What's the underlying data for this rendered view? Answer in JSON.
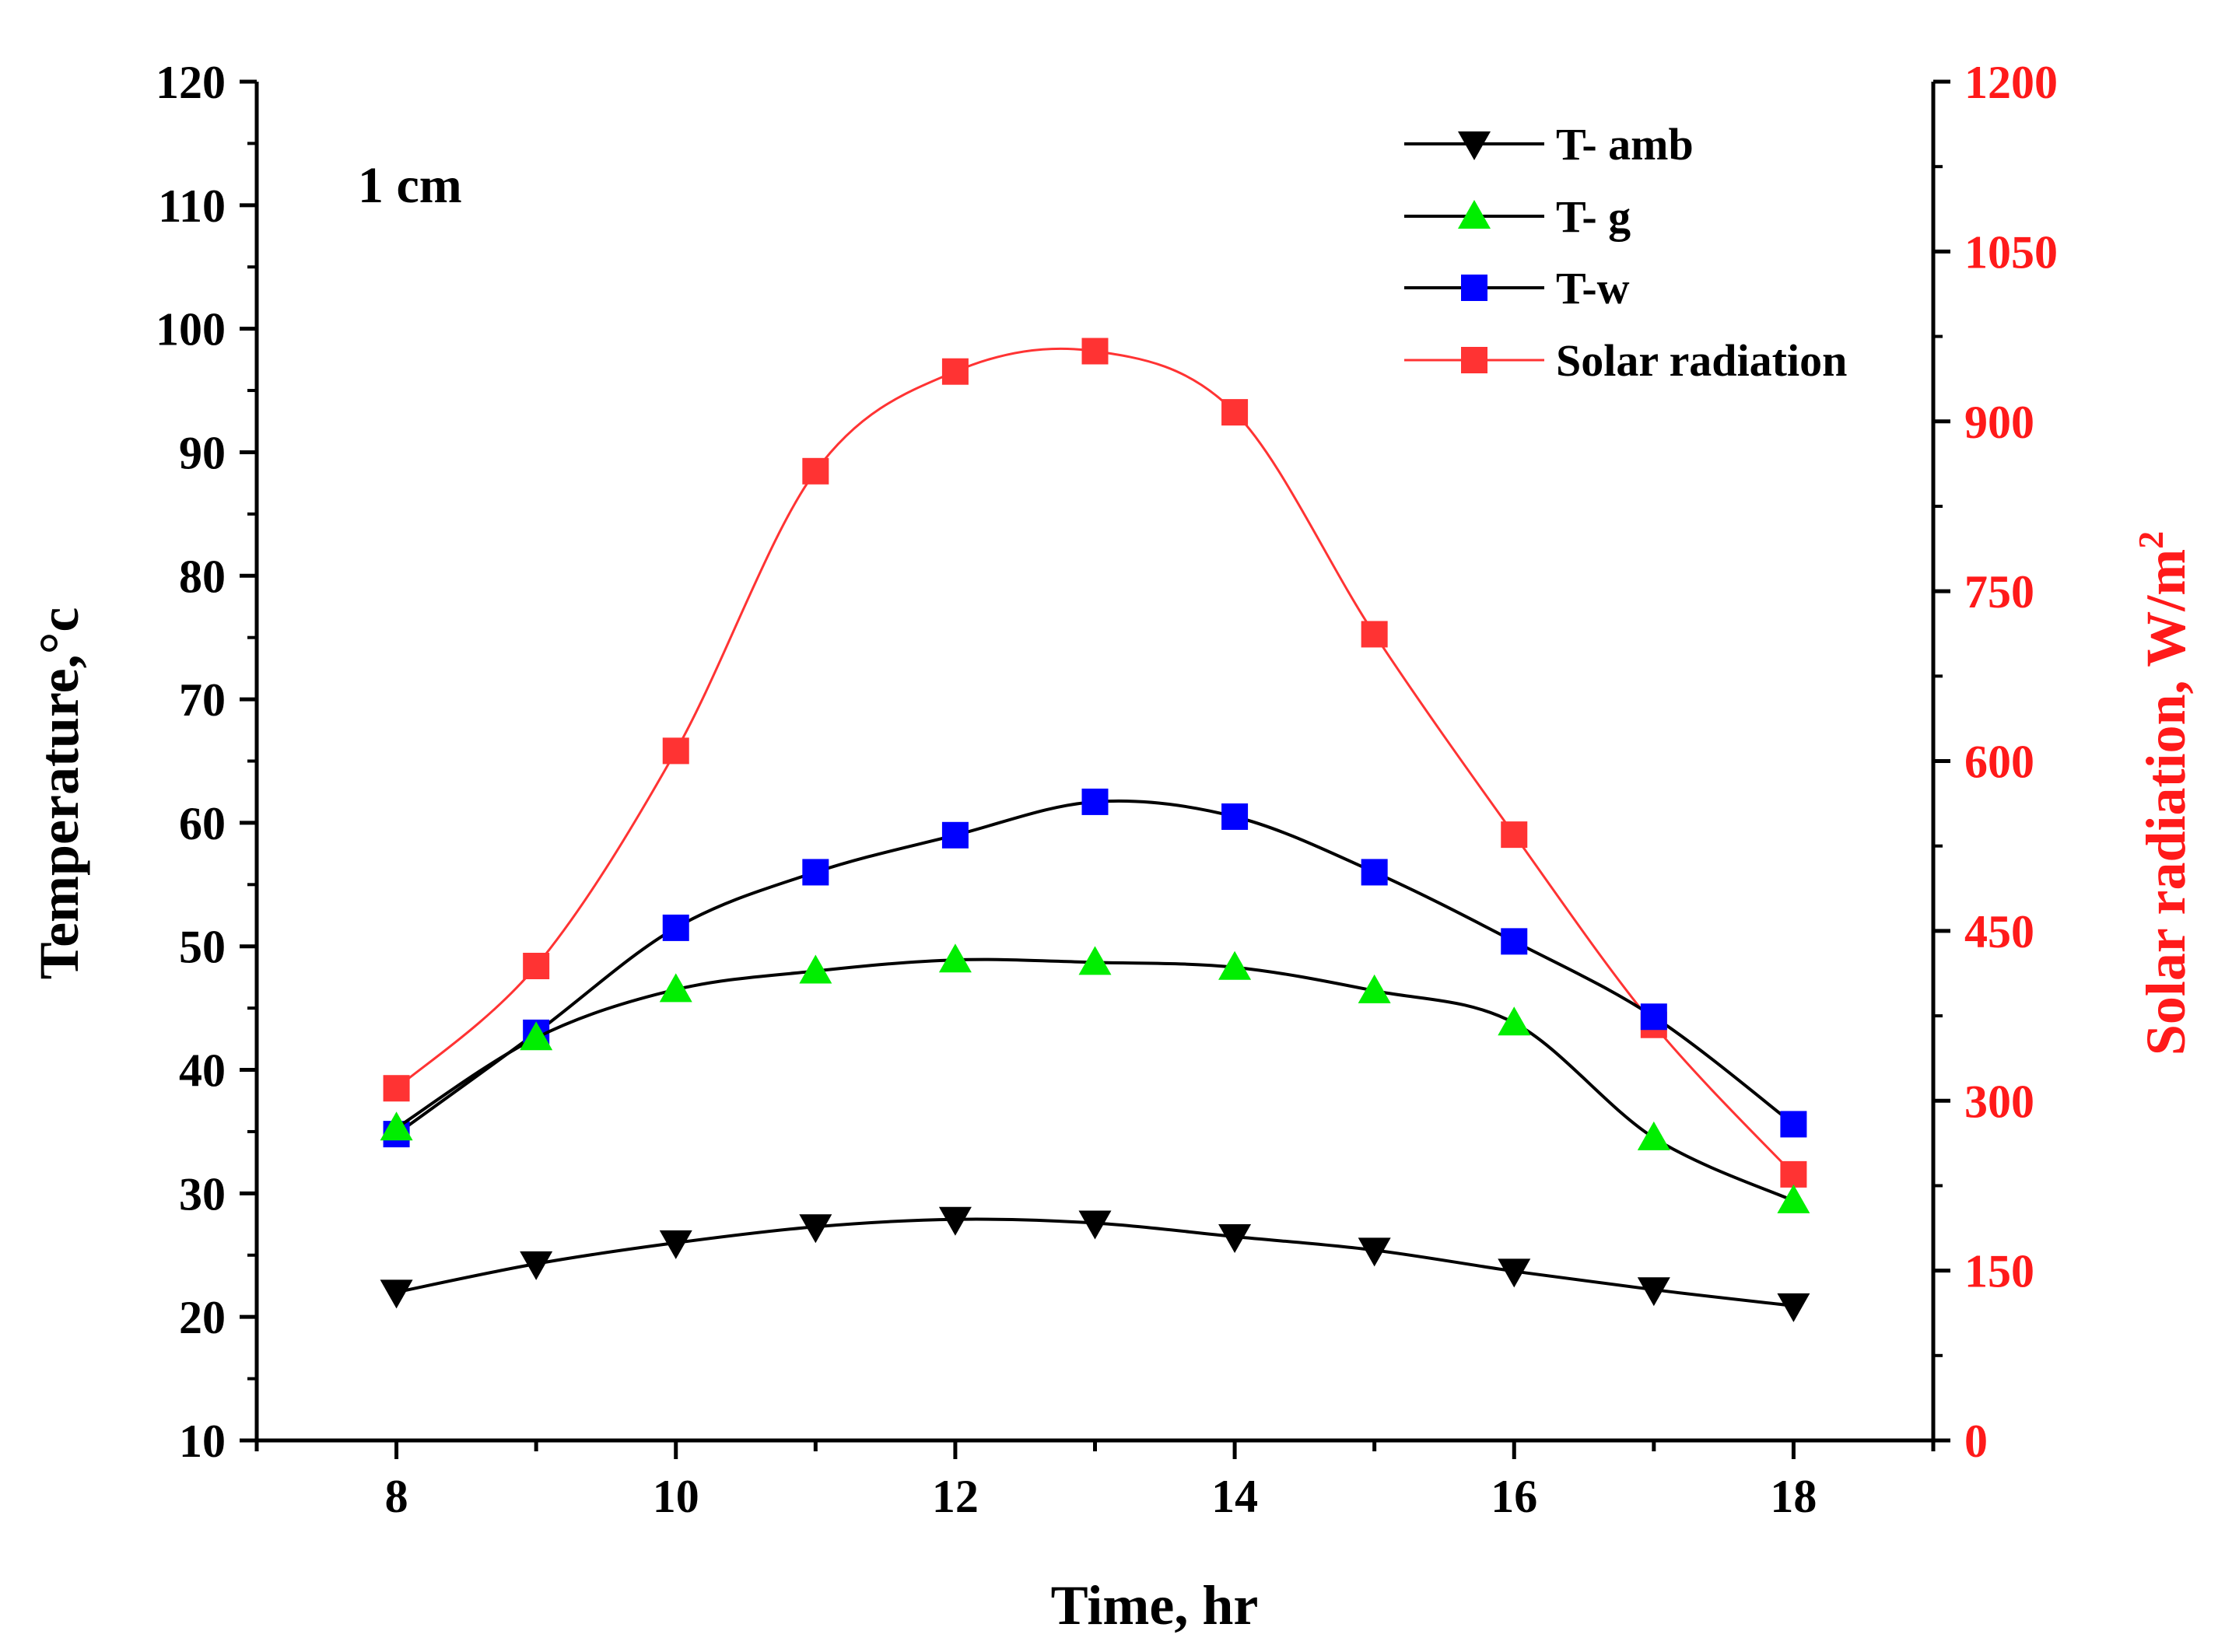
{
  "chart_data": {
    "type": "line",
    "annotation": "1 cm",
    "xlabel": "Time, hr",
    "ylabel": "Temperature,°c",
    "y2label": "Solar radiation, W/m",
    "y2label_sup": "2",
    "xlim": [
      7,
      19
    ],
    "ylim": [
      10,
      120
    ],
    "y2lim": [
      0,
      1200
    ],
    "x": [
      8,
      9,
      10,
      11,
      12,
      13,
      14,
      15,
      16,
      17,
      18
    ],
    "xticks": [
      8,
      10,
      12,
      14,
      16,
      18
    ],
    "yticks": [
      10,
      20,
      30,
      40,
      50,
      60,
      70,
      80,
      90,
      100,
      110,
      120
    ],
    "y2ticks": [
      0,
      150,
      300,
      450,
      600,
      750,
      900,
      1050,
      1200
    ],
    "legend_position": "top-right",
    "colors": {
      "axis": "#000000",
      "right_axis": "#ff1a1a",
      "amb_marker": "#000000",
      "g_marker": "#00ee00",
      "w_marker": "#0000ff",
      "solar": "#ff3333",
      "fit_line": "#000000"
    },
    "series": [
      {
        "name": "T- amb",
        "axis": "left",
        "marker": "triangle-down",
        "values": [
          22.0,
          24.3,
          26.0,
          27.3,
          27.9,
          27.6,
          26.5,
          25.4,
          23.7,
          22.2,
          20.9
        ]
      },
      {
        "name": "T- g",
        "axis": "left",
        "marker": "triangle-up",
        "values": [
          35.3,
          42.6,
          46.5,
          48.0,
          48.9,
          48.7,
          48.3,
          46.4,
          43.8,
          34.5,
          29.4
        ]
      },
      {
        "name": "T-w",
        "axis": "left",
        "marker": "square",
        "values": [
          34.8,
          43.0,
          51.5,
          56.0,
          59.0,
          61.7,
          60.5,
          56.0,
          50.4,
          44.3,
          35.6
        ]
      },
      {
        "name": "Solar radiation",
        "axis": "right",
        "marker": "square",
        "values": [
          311,
          419,
          609,
          856,
          944,
          962,
          908,
          712,
          535,
          367,
          235
        ]
      }
    ]
  }
}
